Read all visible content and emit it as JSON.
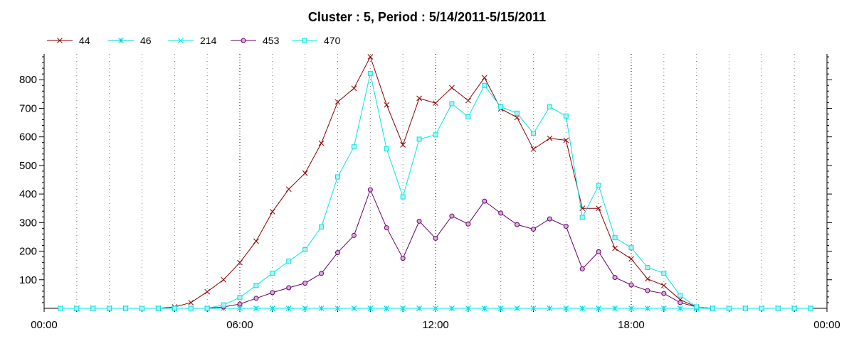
{
  "chart_data": {
    "type": "line",
    "title": "Cluster : 5, Period : 5/14/2011-5/15/2011",
    "xlabel": "",
    "ylabel": "",
    "x_ticks": [
      "00:00",
      "06:00",
      "12:00",
      "18:00",
      "00:00"
    ],
    "y_ticks": [
      "100",
      "200",
      "300",
      "400",
      "500",
      "600",
      "700",
      "800"
    ],
    "xlim_hours": [
      0,
      24
    ],
    "ylim": [
      0,
      890
    ],
    "legend_position": "top-left",
    "grid": "vertical dotted every hour, y-axis with minor ticks",
    "x_hours": [
      0.5,
      1,
      1.5,
      2,
      2.5,
      3,
      3.5,
      4,
      4.5,
      5,
      5.5,
      6,
      6.5,
      7,
      7.5,
      8,
      8.5,
      9,
      9.5,
      10,
      10.5,
      11,
      11.5,
      12,
      12.5,
      13,
      13.5,
      14,
      14.5,
      15,
      15.5,
      16,
      16.5,
      17,
      17.5,
      18,
      18.5,
      19,
      19.5,
      20,
      20.5,
      21,
      21.5,
      22,
      22.5,
      23,
      23.5
    ],
    "series": [
      {
        "name": "44",
        "color": "#8b0000",
        "marker": "x",
        "values": [
          0,
          0,
          0,
          0,
          0,
          0,
          0,
          5,
          20,
          58,
          100,
          160,
          235,
          338,
          417,
          473,
          578,
          722,
          770,
          880,
          712,
          572,
          735,
          718,
          772,
          727,
          807,
          698,
          668,
          557,
          595,
          588,
          350,
          350,
          210,
          173,
          103,
          80,
          30,
          5,
          0,
          0,
          0,
          0,
          0,
          0,
          0
        ]
      },
      {
        "name": "46",
        "color": "#00cccc",
        "marker": "asterisk",
        "values": [
          0,
          0,
          0,
          0,
          0,
          0,
          0,
          0,
          0,
          0,
          0,
          0,
          0,
          0,
          0,
          0,
          0,
          0,
          0,
          0,
          0,
          0,
          0,
          0,
          0,
          0,
          0,
          0,
          0,
          0,
          0,
          0,
          0,
          0,
          0,
          0,
          0,
          0,
          0,
          0,
          0,
          0,
          0,
          0,
          0,
          0,
          0
        ]
      },
      {
        "name": "214",
        "color": "#00e5e5",
        "marker": "x",
        "values": [
          0,
          0,
          0,
          0,
          0,
          0,
          0,
          0,
          0,
          0,
          0,
          0,
          0,
          0,
          0,
          0,
          0,
          0,
          0,
          0,
          0,
          0,
          0,
          0,
          0,
          0,
          0,
          0,
          0,
          0,
          0,
          0,
          0,
          0,
          0,
          0,
          0,
          0,
          0,
          0,
          0,
          0,
          0,
          0,
          0,
          0,
          0
        ]
      },
      {
        "name": "453",
        "color": "#660066",
        "marker": "circle",
        "values": [
          0,
          0,
          0,
          0,
          0,
          0,
          0,
          0,
          0,
          0,
          5,
          15,
          35,
          55,
          72,
          88,
          122,
          195,
          255,
          415,
          282,
          175,
          305,
          245,
          323,
          295,
          375,
          333,
          293,
          277,
          313,
          287,
          138,
          198,
          108,
          82,
          62,
          52,
          20,
          5,
          0,
          0,
          0,
          0,
          0,
          0,
          0
        ]
      },
      {
        "name": "470",
        "color": "#00e5e5",
        "marker": "square",
        "values": [
          0,
          0,
          0,
          0,
          0,
          0,
          0,
          0,
          0,
          0,
          12,
          38,
          80,
          123,
          165,
          205,
          285,
          460,
          565,
          822,
          558,
          390,
          592,
          607,
          716,
          670,
          780,
          705,
          683,
          612,
          705,
          673,
          318,
          430,
          247,
          212,
          143,
          123,
          45,
          5,
          0,
          0,
          0,
          0,
          0,
          0,
          0
        ]
      }
    ]
  }
}
